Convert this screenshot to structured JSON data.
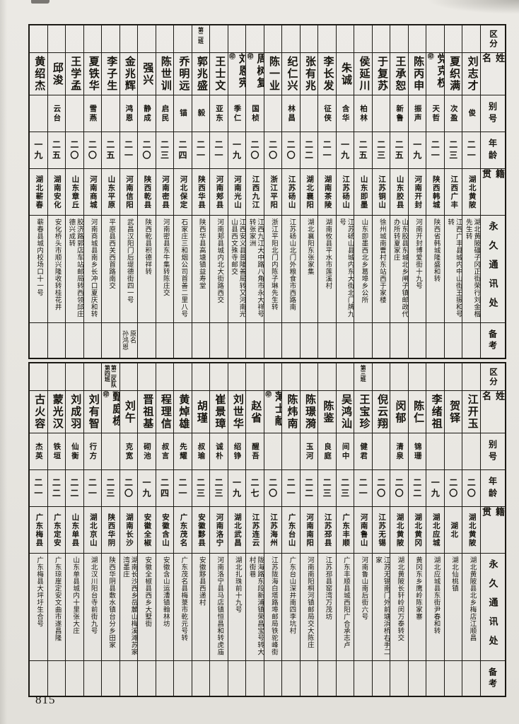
{
  "page": {
    "number": "815"
  },
  "seal_glyph": "㊞",
  "row_headers": {
    "division": "区分",
    "name": "姓名",
    "alias": "别号",
    "age": "年龄",
    "origin": "籍贯",
    "address": "永久通讯处",
    "note": "备考"
  },
  "tables": [
    {
      "entries": [
        {
          "name": "刘志才",
          "alias": "俊",
          "age": "二一",
          "origin": "湖北黄陂",
          "address": "湖北黄陂礓子冈正街荣行刘金楷先生转"
        },
        {
          "name": "夏织满",
          "alias": "次盈",
          "age": "二三",
          "origin": "江西广丰",
          "address": "江西广丰县城内中山街王振和号转"
        },
        {
          "name": "党克权",
          "seal": true,
          "alias": "天哲",
          "age": "二一",
          "origin": "陕西韩城",
          "address": "陕西省韩城隆盛和转"
        },
        {
          "name": "陈丙申",
          "alias": "振声",
          "age": "一九",
          "origin": "河南开封",
          "address": "河南开封博爱街十九号"
        },
        {
          "name": "王承恕",
          "alias": "新鲁",
          "age": "二五",
          "origin": "山东胶县",
          "address": "山东胶县东城北乡闸子镇邮政代办所转夏家庄"
        },
        {
          "name": "于复苏",
          "alias": "",
          "age": "二三",
          "origin": "江苏铜山",
          "address": "徐州城南曹村东站西于家楼"
        },
        {
          "name": "侯延川",
          "alias": "柏林",
          "age": "二五",
          "origin": "山东即墨",
          "address": "山东即墨西北乡葛埠乡公所"
        },
        {
          "name": "朱诚",
          "alias": "含华",
          "age": "一九",
          "origin": "江苏砀山",
          "address": "江苏砀山县城内东大街北门牌九号"
        },
        {
          "name": "李长发",
          "alias": "征侠",
          "age": "二一",
          "origin": "湖南茶陵",
          "address": "湖南攸县平水市莲溪村"
        },
        {
          "name": "张有兆",
          "alias": "",
          "age": "二二",
          "origin": "湖北襄阳",
          "address": "湖北襄阳东张家集"
        },
        {
          "name": "纪仁兴",
          "alias": "林昌",
          "age": "二〇",
          "origin": "江苏砀山",
          "address": "江苏砀山北门外粮食市西路南"
        },
        {
          "name": "陈一业",
          "alias": "",
          "age": "二〇",
          "origin": "浙江平阳",
          "address": "浙江平阳北门内陈子琳先生转"
        },
        {
          "name": "周树复",
          "seal": true,
          "alias": "国桢",
          "age": "二〇",
          "origin": "江西九江",
          "address": "江西九江大中路八角市永大祥号转张家洲"
        },
        {
          "name": "刘恩宪",
          "seal": true,
          "alias": "季仁",
          "age": "一九",
          "origin": "河南光山",
          "address": "江西安义县普隆善局转又河南光山县西文殊寺邮交"
        },
        {
          "name": "王士文",
          "alias": "亚东",
          "age": "二一",
          "origin": "河南郏县",
          "address": "河南郏县城内北大街路西交"
        },
        {
          "name": "郭兆盛",
          "division": "第二班",
          "alias": "毅",
          "age": "二一",
          "origin": "陕西华县",
          "address": "陕西华县高塘镇益寿堂"
        },
        {
          "name": "乔明远",
          "alias": "锚",
          "age": "二四",
          "origin": "河北保定",
          "address": "石家庄三和烟公司首善二里八号"
        },
        {
          "name": "陈世训",
          "alias": "启民",
          "age": "二三",
          "origin": "河南密县",
          "address": "河南密县东牛集转陈庄交"
        },
        {
          "name": "强兴",
          "alias": "静成",
          "age": "二〇",
          "origin": "陕西乾县",
          "address": "陕西乾县积德祥转"
        },
        {
          "name": "金兆辉",
          "alias": "鸿恩",
          "age": "二一",
          "origin": "河南信阳",
          "address": "武昌汉阳门后堤德街四一号",
          "note": "原名\n孙鸿恩"
        },
        {
          "name": "李子生",
          "alias": "",
          "age": "二五",
          "origin": "山东平原",
          "address": "平原县西关西首路南交"
        },
        {
          "name": "夏铁华",
          "alias": "雪燕",
          "age": "二〇",
          "origin": "河南商城",
          "address": "河南商城县南乡长冲口夏庆和转"
        },
        {
          "name": "王学孟",
          "alias": "",
          "age": "二〇",
          "origin": "山东章丘",
          "address": "胶济路郭店车站邮局转西领邱庄德兴成转"
        },
        {
          "name": "邱浚",
          "alias": "云台",
          "age": "二五",
          "origin": "湖南安化",
          "address": "安化桥头市顺兴隆收转桂花井"
        },
        {
          "name": "黄绍杰",
          "alias": "",
          "age": "一九",
          "origin": "湖北蕲春",
          "address": "蕲春县城内校场口十一号"
        }
      ]
    },
    {
      "entries": [
        {
          "name": "江开玉",
          "alias": "",
          "age": "二〇",
          "origin": "湖北黄陂",
          "address": "湖北黄陂县北乡梅店江顺昌"
        },
        {
          "name": "贺铎",
          "alias": "",
          "age": "二〇",
          "origin": "湖北",
          "address": "湖北仙桃镇"
        },
        {
          "name": "李绪祖",
          "alias": "",
          "age": "一九",
          "origin": "湖北应城",
          "address": "湖北应城县东街尹春和转"
        },
        {
          "name": "陈仁",
          "alias": "锦珊",
          "age": "二二",
          "origin": "湖北黄冈",
          "address": "黄冈东乡鹰岭陈家寨"
        },
        {
          "name": "闵郁",
          "alias": "清泉",
          "age": "二〇",
          "origin": "湖北黄陂",
          "address": "湖北黄陂长轩岭闵万泰转交"
        },
        {
          "name": "倪云翔",
          "alias": "",
          "age": "二〇",
          "origin": "江苏无锡",
          "address": "江苏无锡南门外前塘浜桥右手二家"
        },
        {
          "name": "王宝珍",
          "division": "第三班",
          "alias": "健君",
          "age": "二一",
          "origin": "河南鲁山",
          "address": "河南鲁山南后街六号"
        },
        {
          "name": "吴鸿汕",
          "alias": "间中",
          "age": "二三",
          "origin": "广东丰顺",
          "address": "广东丰顺县城西阳广合承志卢"
        },
        {
          "name": "陈鉴",
          "alias": "良庭",
          "age": "二三",
          "origin": "江苏邳县",
          "address": "江苏邳县窑湾万茂坊"
        },
        {
          "name": "陈璟漪",
          "alias": "玉河",
          "age": "二二",
          "origin": "河南南阳",
          "address": "河南南阳桐河镇邮局交大陈庄"
        },
        {
          "name": "陈炜南",
          "alias": "",
          "age": "二一",
          "origin": "广东台山",
          "address": "广东台山深井南四李坑村"
        },
        {
          "name": "薄士献",
          "seal": true,
          "alias": "",
          "age": "二〇",
          "origin": "江苏海州",
          "address": "江苏陇海白塔路埠邮局铁驼峰街"
        },
        {
          "name": "赵省",
          "alias": "醒吾",
          "age": "二七",
          "origin": "江苏连云",
          "address": "陇海路东段新浦镇荣昌宝号转大村街巷"
        },
        {
          "name": "刘世华",
          "alias": "绍铮",
          "age": "一九",
          "origin": "湖北武昌",
          "address": "湖北扎珠前十九号"
        },
        {
          "name": "崔景璋",
          "alias": "诚朴",
          "age": "二三",
          "origin": "河南洛宁",
          "address": "河南洛宁县马店镇恒昌和转虎庙"
        },
        {
          "name": "胡瑾",
          "alias": "叔瑜",
          "age": "二三",
          "origin": "安徽黟县",
          "address": "安徽黟县西递村"
        },
        {
          "name": "黄焯雄",
          "alias": "先耀",
          "age": "二一",
          "origin": "广东茂名",
          "address": "广东茂名县梅菉市乾元号转"
        },
        {
          "name": "程理信",
          "alias": "叔言",
          "age": "二四",
          "origin": "安徽含山",
          "address": "安徽含山运漕镇翰林坊"
        },
        {
          "name": "晋祖基",
          "alias": "砌池",
          "age": "一九",
          "origin": "安徽全椒",
          "address": "安徽全椒县西乡大墅街"
        },
        {
          "name": "刘午",
          "alias": "克宽",
          "age": "二〇",
          "origin": "湖南长沙",
          "address": "湖南长沙西乡岳麓山梅溪滩苏家湾墨庄"
        },
        {
          "name": "甄庭栋",
          "seal": true,
          "division": "第二区队\n第四班",
          "alias": "",
          "age": "二三",
          "origin": "陕西华阴",
          "address": "陕西华阴县敷水镇台分乡田家"
        },
        {
          "name": "刘有智",
          "alias": "行方",
          "age": "二一",
          "origin": "湖北京山",
          "address": "湖北汉川阳台寺前街九号"
        },
        {
          "name": "刘成羽",
          "alias": "仙衡",
          "age": "二二",
          "origin": "山东单县",
          "address": "山东单县城内十里张大庄"
        },
        {
          "name": "蒙光汉",
          "alias": "铁垣",
          "age": "二二",
          "origin": "广东定安",
          "address": "广东琼崖定安文曲市遂昌隆"
        },
        {
          "name": "古火容",
          "alias": "杰英",
          "age": "二一",
          "origin": "广东梅县",
          "address": "广东梅县大坪圩生合号"
        }
      ]
    }
  ]
}
